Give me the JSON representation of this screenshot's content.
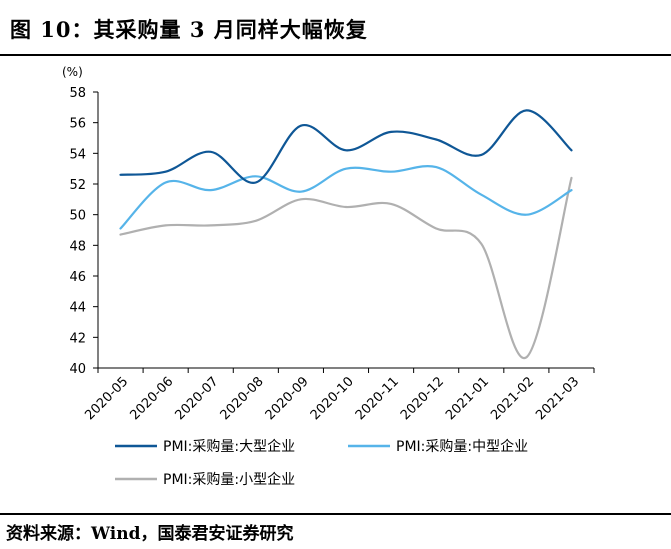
{
  "title": "图 10：其采购量 3 月同样大幅恢复",
  "source": "资料来源：Wind，国泰君安证券研究",
  "chart_data": {
    "type": "line",
    "unit_label": "(%)",
    "categories": [
      "2020-05",
      "2020-06",
      "2020-07",
      "2020-08",
      "2020-09",
      "2020-10",
      "2020-11",
      "2020-12",
      "2021-01",
      "2021-02",
      "2021-03"
    ],
    "ylim": [
      40,
      58
    ],
    "yticks": [
      40,
      42,
      44,
      46,
      48,
      50,
      52,
      54,
      56,
      58
    ],
    "series": [
      {
        "name": "PMI:采购量:大型企业",
        "color": "#0f5796",
        "values": [
          52.6,
          52.8,
          54.1,
          52.1,
          55.8,
          54.2,
          55.4,
          54.9,
          53.9,
          56.8,
          54.2
        ]
      },
      {
        "name": "PMI:采购量:中型企业",
        "color": "#56b4e9",
        "values": [
          49.1,
          52.1,
          51.6,
          52.5,
          51.5,
          53.0,
          52.8,
          53.1,
          51.3,
          50.0,
          51.6
        ]
      },
      {
        "name": "PMI:采购量:小型企业",
        "color": "#b0b0b0",
        "values": [
          48.7,
          49.3,
          49.3,
          49.6,
          51.0,
          50.5,
          50.7,
          49.1,
          48.1,
          40.7,
          52.4
        ]
      }
    ],
    "grid": false,
    "legend": "bottom"
  }
}
